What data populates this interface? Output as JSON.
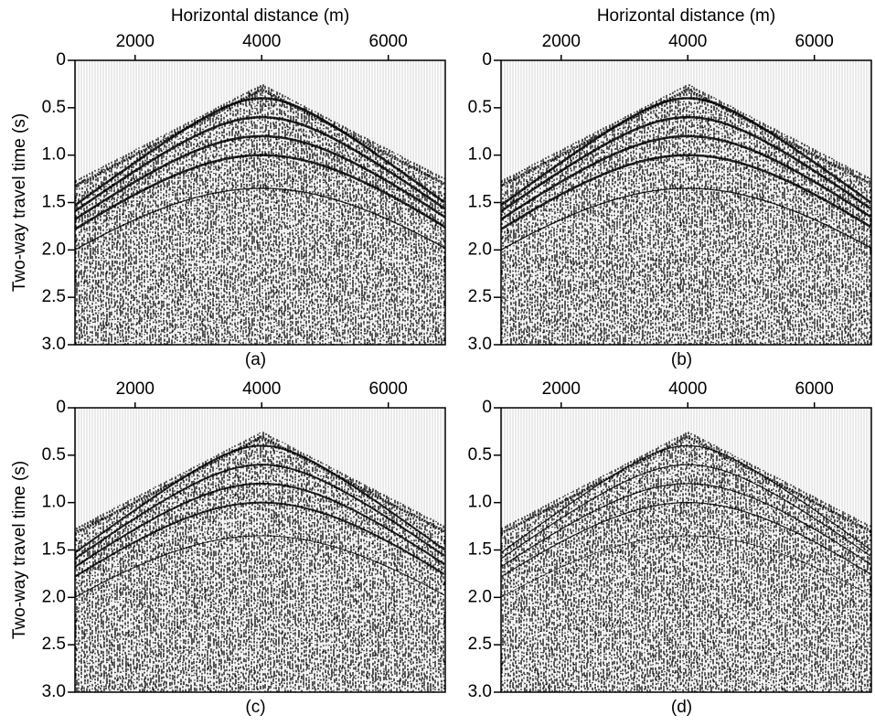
{
  "chart_data": [
    {
      "type": "seismic",
      "x_label": "Horizontal distance (m)",
      "y_label": "Two-way travel time (s)",
      "caption": "(a)",
      "xlim": [
        1050,
        6900
      ],
      "xticks": [
        2000,
        4000,
        6000
      ],
      "ylim": [
        0,
        3
      ],
      "yticks": [
        0,
        0.5,
        {
          "value": 1,
          "label": "1.0"
        },
        1.5,
        {
          "value": 2,
          "label": "2.0"
        },
        2.5,
        {
          "value": 3,
          "label": "3.0"
        }
      ],
      "y_inverted": true
    },
    {
      "type": "seismic",
      "x_label": "Horizontal distance (m)",
      "caption": "(b)",
      "xlim": [
        1050,
        6900
      ],
      "xticks": [
        2000,
        4000,
        6000
      ],
      "ylim": [
        0,
        3
      ],
      "yticks": [
        0,
        0.5,
        {
          "value": 1,
          "label": "1.0"
        },
        1.5,
        {
          "value": 2,
          "label": "2.0"
        },
        2.5,
        {
          "value": 3,
          "label": "3.0"
        }
      ],
      "y_inverted": true
    },
    {
      "type": "seismic",
      "y_label": "Two-way travel time (s)",
      "caption": "(c)",
      "xlim": [
        1050,
        6900
      ],
      "xticks": [
        2000,
        4000,
        6000
      ],
      "ylim": [
        0,
        3
      ],
      "yticks": [
        0,
        0.5,
        {
          "value": 1,
          "label": "1.0"
        },
        1.5,
        {
          "value": 2,
          "label": "2.0"
        },
        2.5,
        {
          "value": 3,
          "label": "3.0"
        }
      ],
      "y_inverted": true
    },
    {
      "type": "seismic",
      "caption": "(d)",
      "xlim": [
        1050,
        6900
      ],
      "xticks": [
        2000,
        4000,
        6000
      ],
      "ylim": [
        0,
        3
      ],
      "yticks": [
        0,
        0.5,
        {
          "value": 1,
          "label": "1.0"
        },
        1.5,
        {
          "value": 2,
          "label": "2.0"
        },
        2.5,
        {
          "value": 3,
          "label": "3.0"
        }
      ],
      "y_inverted": true
    }
  ]
}
